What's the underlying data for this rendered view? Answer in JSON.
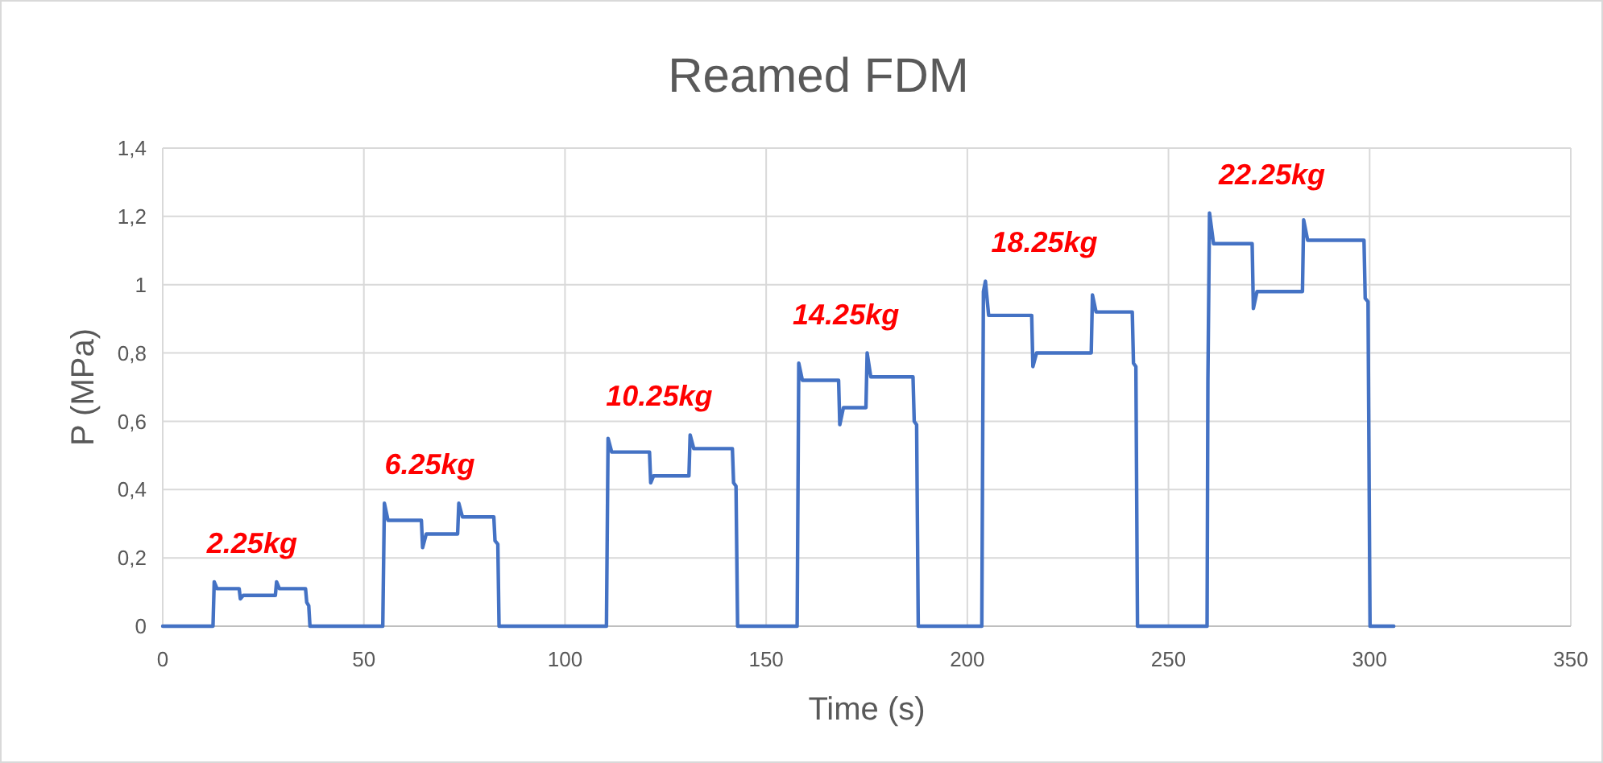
{
  "chart_data": {
    "type": "line",
    "title": "Reamed FDM",
    "xlabel": "Time (s)",
    "ylabel": "P (MPa)",
    "xlim": [
      0,
      350
    ],
    "xticks": [
      0,
      50,
      100,
      150,
      200,
      250,
      300,
      350
    ],
    "ylim": [
      0,
      1.4
    ],
    "yticks": [
      0,
      {
        "value": 0.2,
        "label": "0,2"
      },
      {
        "value": 0.4,
        "label": "0,4"
      },
      {
        "value": 0.6,
        "label": "0,6"
      },
      {
        "value": 0.8,
        "label": "0,8"
      },
      1,
      {
        "value": 1.2,
        "label": "1,2"
      },
      {
        "value": 1.4,
        "label": "1,4"
      }
    ],
    "grid": true,
    "marker": "none",
    "line_style": "solid",
    "series": [
      {
        "color": "#4472c4",
        "x": [
          0,
          12.5,
          12.8,
          13.5,
          19,
          19.3,
          20,
          28,
          28.3,
          29,
          35.5,
          35.8,
          36.3,
          36.6,
          54.7,
          55.1,
          56,
          64.3,
          64.6,
          65.5,
          73.3,
          73.6,
          74.5,
          82.3,
          82.6,
          83.3,
          83.6,
          110.3,
          110.7,
          111.6,
          121,
          121.3,
          122,
          130.8,
          131.1,
          132,
          141.6,
          141.9,
          142.5,
          142.9,
          157.7,
          158.1,
          159,
          168,
          168.3,
          169.2,
          174.8,
          175.1,
          176,
          186.5,
          186.8,
          187.4,
          187.8,
          203.6,
          204,
          204.5,
          205.3,
          216,
          216.3,
          217.2,
          230.8,
          231.1,
          232,
          241,
          241.3,
          241.9,
          242.3,
          259.6,
          259.8,
          260.2,
          261.2,
          270.8,
          271.1,
          272,
          283.3,
          283.6,
          284.6,
          298.6,
          298.9,
          299.6,
          300.1,
          306
        ],
        "values": [
          0,
          0,
          0.13,
          0.11,
          0.11,
          0.08,
          0.09,
          0.09,
          0.13,
          0.11,
          0.11,
          0.07,
          0.06,
          0,
          0,
          0.36,
          0.31,
          0.31,
          0.23,
          0.27,
          0.27,
          0.36,
          0.32,
          0.32,
          0.25,
          0.24,
          0,
          0,
          0.55,
          0.51,
          0.51,
          0.42,
          0.44,
          0.44,
          0.56,
          0.52,
          0.52,
          0.42,
          0.41,
          0,
          0,
          0.77,
          0.72,
          0.72,
          0.59,
          0.64,
          0.64,
          0.8,
          0.73,
          0.73,
          0.6,
          0.59,
          0,
          0,
          0.98,
          1.01,
          0.91,
          0.91,
          0.76,
          0.8,
          0.8,
          0.97,
          0.92,
          0.92,
          0.77,
          0.76,
          0,
          0,
          0.72,
          1.21,
          1.12,
          1.12,
          0.93,
          0.98,
          0.98,
          1.19,
          1.13,
          1.13,
          0.96,
          0.95,
          0,
          0
        ]
      }
    ],
    "annotations": [
      "2.25kg",
      "6.25kg",
      "10.25kg",
      "14.25kg",
      "18.25kg",
      "22.25kg"
    ]
  }
}
